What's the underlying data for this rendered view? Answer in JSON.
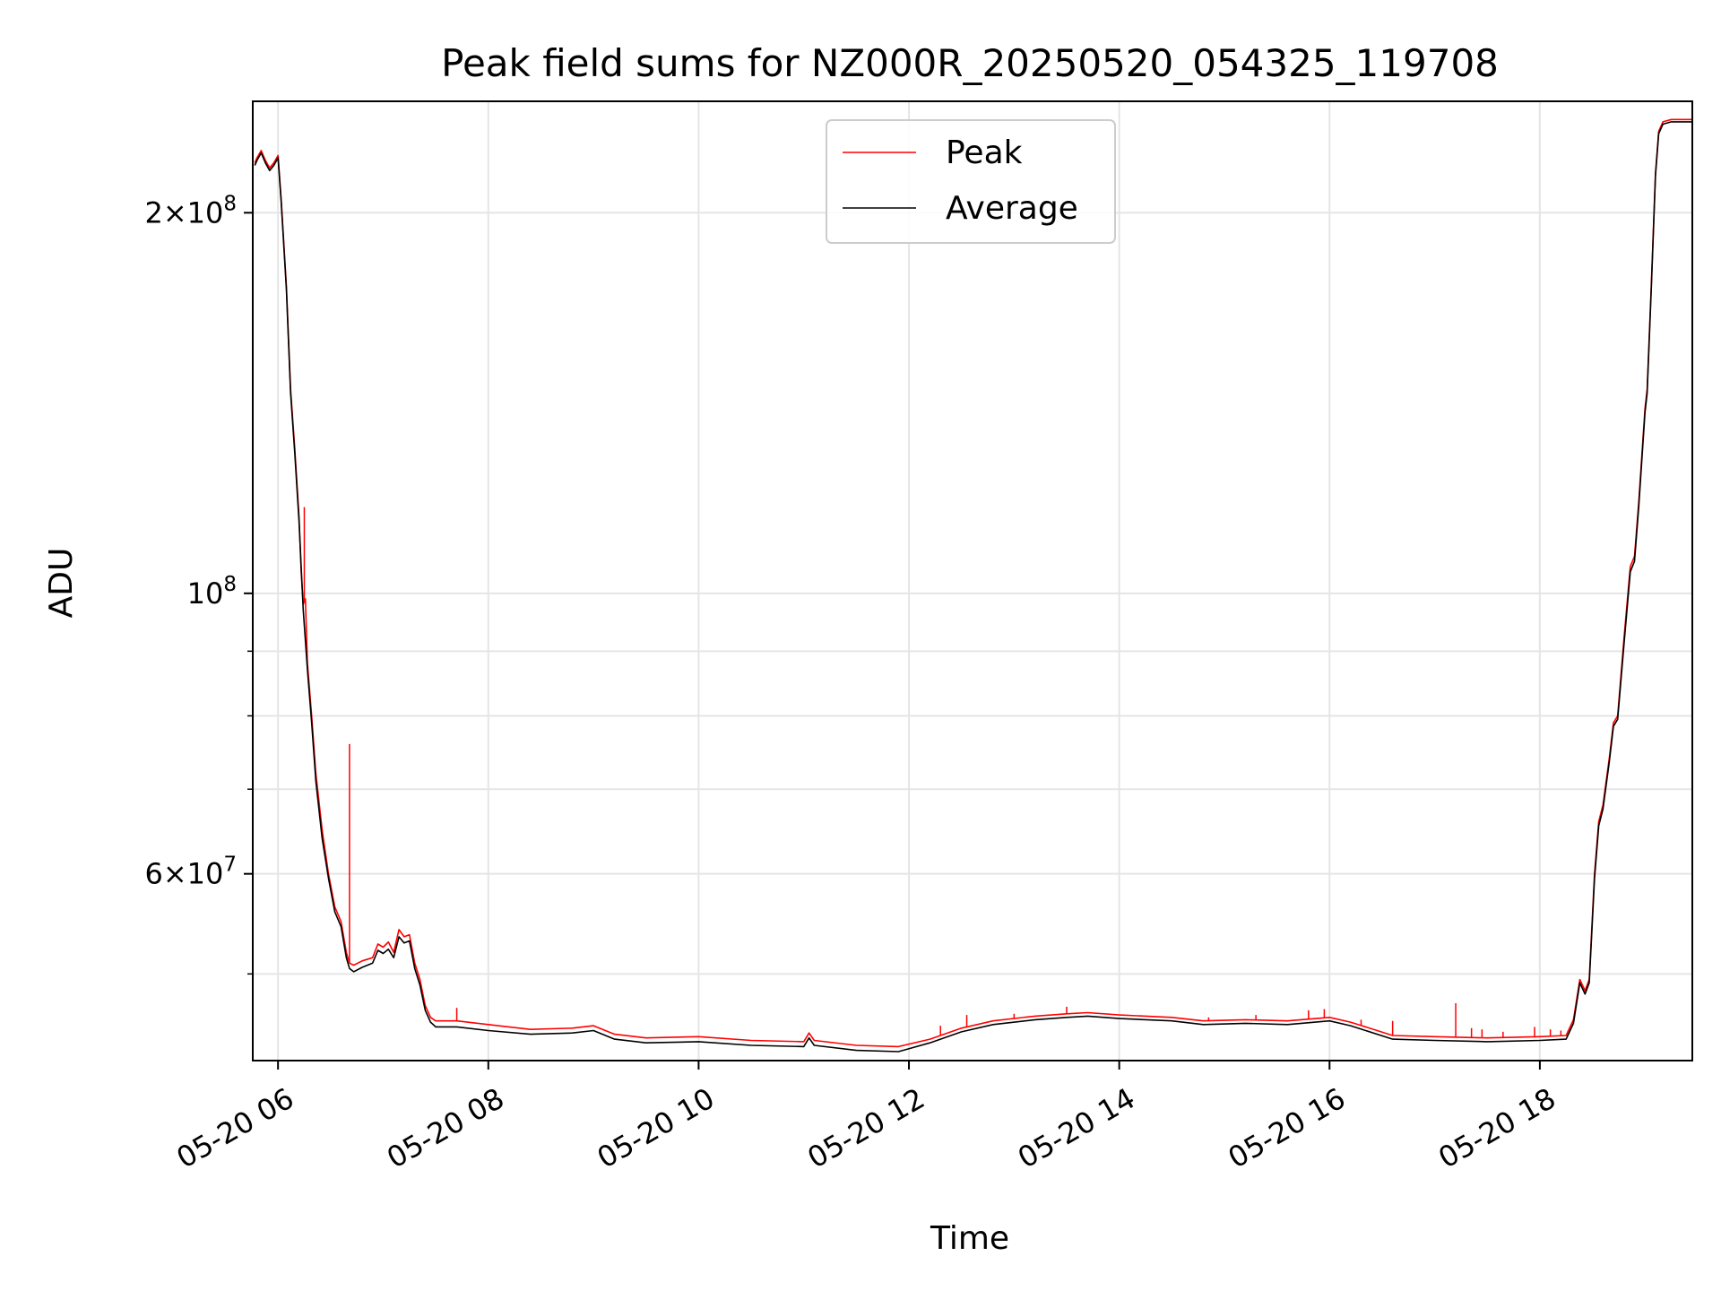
{
  "chart_data": {
    "type": "line",
    "title": "Peak field sums for NZ000R_20250520_054325_119708",
    "xlabel": "Time",
    "ylabel": "ADU",
    "x_unit": "hours",
    "xlim": [
      5.76,
      19.45
    ],
    "ylim": [
      42700000,
      245000000
    ],
    "y_scale": "log",
    "grid": true,
    "legend_position": "top-center",
    "x_ticks": [
      {
        "value": 6,
        "label": "05-20 06"
      },
      {
        "value": 8,
        "label": "05-20 08"
      },
      {
        "value": 10,
        "label": "05-20 10"
      },
      {
        "value": 12,
        "label": "05-20 12"
      },
      {
        "value": 14,
        "label": "05-20 14"
      },
      {
        "value": 16,
        "label": "05-20 16"
      },
      {
        "value": 18,
        "label": "05-20 18"
      }
    ],
    "y_major_ticks": [
      {
        "value": 100000000,
        "base": "10",
        "exp": "8"
      },
      {
        "value": 200000000,
        "mant": "2",
        "base": "10",
        "exp": "8"
      },
      {
        "value": 60000000,
        "mant": "6",
        "base": "10",
        "exp": "7"
      }
    ],
    "y_minor_ticks": [
      50000000,
      70000000,
      80000000,
      90000000
    ],
    "series": [
      {
        "name": "Peak",
        "color": "#ff0000",
        "points": [
          [
            5.78,
            219000000.0
          ],
          [
            5.8,
            221000000.0
          ],
          [
            5.84,
            224000000.0
          ],
          [
            5.88,
            220000000.0
          ],
          [
            5.92,
            217000000.0
          ],
          [
            5.96,
            219000000.0
          ],
          [
            6.0,
            222000000.0
          ],
          [
            6.03,
            205000000.0
          ],
          [
            6.08,
            175000000.0
          ],
          [
            6.12,
            145000000.0
          ],
          [
            6.16,
            130000000.0
          ],
          [
            6.2,
            115000000.0
          ],
          [
            6.22,
            104000000.0
          ],
          [
            6.24,
            98000000.0
          ],
          [
            6.26,
            99000000.0
          ],
          [
            6.28,
            88000000.0
          ],
          [
            6.32,
            80000000.0
          ],
          [
            6.36,
            72000000.0
          ],
          [
            6.42,
            65000000.0
          ],
          [
            6.48,
            60000000.0
          ],
          [
            6.54,
            56500000.0
          ],
          [
            6.6,
            55000000.0
          ],
          [
            6.65,
            52000000.0
          ],
          [
            6.68,
            51000000.0
          ],
          [
            6.72,
            50800000.0
          ],
          [
            6.8,
            51200000.0
          ],
          [
            6.9,
            51500000.0
          ],
          [
            6.95,
            52800000.0
          ],
          [
            7.0,
            52500000.0
          ],
          [
            7.05,
            53000000.0
          ],
          [
            7.1,
            52000000.0
          ],
          [
            7.15,
            54200000.0
          ],
          [
            7.2,
            53500000.0
          ],
          [
            7.25,
            53700000.0
          ],
          [
            7.3,
            51000000.0
          ],
          [
            7.35,
            49500000.0
          ],
          [
            7.4,
            47200000.0
          ],
          [
            7.45,
            46200000.0
          ],
          [
            7.5,
            45900000.0
          ],
          [
            7.7,
            45900000.0
          ],
          [
            8.0,
            45600000.0
          ],
          [
            8.4,
            45200000.0
          ],
          [
            8.8,
            45300000.0
          ],
          [
            9.0,
            45500000.0
          ],
          [
            9.2,
            44800000.0
          ],
          [
            9.5,
            44500000.0
          ],
          [
            10.0,
            44600000.0
          ],
          [
            10.5,
            44300000.0
          ],
          [
            11.0,
            44200000.0
          ],
          [
            11.05,
            44900000.0
          ],
          [
            11.1,
            44300000.0
          ],
          [
            11.5,
            43900000.0
          ],
          [
            11.9,
            43800000.0
          ],
          [
            12.2,
            44400000.0
          ],
          [
            12.5,
            45300000.0
          ],
          [
            12.8,
            45900000.0
          ],
          [
            13.2,
            46300000.0
          ],
          [
            13.5,
            46500000.0
          ],
          [
            13.7,
            46600000.0
          ],
          [
            14.0,
            46400000.0
          ],
          [
            14.5,
            46200000.0
          ],
          [
            14.8,
            45900000.0
          ],
          [
            15.2,
            46000000.0
          ],
          [
            15.6,
            45900000.0
          ],
          [
            16.0,
            46200000.0
          ],
          [
            16.2,
            45800000.0
          ],
          [
            16.6,
            44700000.0
          ],
          [
            17.0,
            44600000.0
          ],
          [
            17.5,
            44500000.0
          ],
          [
            18.0,
            44600000.0
          ],
          [
            18.25,
            44700000.0
          ],
          [
            18.32,
            46000000.0
          ],
          [
            18.38,
            49500000.0
          ],
          [
            18.43,
            48500000.0
          ],
          [
            18.47,
            49500000.0
          ],
          [
            18.52,
            60000000.0
          ],
          [
            18.56,
            66000000.0
          ],
          [
            18.6,
            68000000.0
          ],
          [
            18.66,
            74000000.0
          ],
          [
            18.7,
            79000000.0
          ],
          [
            18.74,
            80000000.0
          ],
          [
            18.8,
            92000000.0
          ],
          [
            18.86,
            105000000.0
          ],
          [
            18.9,
            107000000.0
          ],
          [
            18.94,
            118000000.0
          ],
          [
            19.0,
            140000000.0
          ],
          [
            19.02,
            145000000.0
          ],
          [
            19.06,
            175000000.0
          ],
          [
            19.1,
            215000000.0
          ],
          [
            19.13,
            232000000.0
          ],
          [
            19.17,
            236000000.0
          ],
          [
            19.25,
            237000000.0
          ],
          [
            19.45,
            237000000.0
          ]
        ]
      },
      {
        "name": "Average",
        "color": "#000000",
        "points": [
          [
            5.78,
            218000000.0
          ],
          [
            5.8,
            220000000.0
          ],
          [
            5.84,
            223000000.0
          ],
          [
            5.88,
            219000000.0
          ],
          [
            5.92,
            216000000.0
          ],
          [
            5.96,
            218000000.0
          ],
          [
            6.0,
            221000000.0
          ],
          [
            6.03,
            204000000.0
          ],
          [
            6.08,
            174000000.0
          ],
          [
            6.12,
            144000000.0
          ],
          [
            6.16,
            129000000.0
          ],
          [
            6.2,
            114000000.0
          ],
          [
            6.24,
            97000000.0
          ],
          [
            6.28,
            87000000.0
          ],
          [
            6.32,
            79000000.0
          ],
          [
            6.36,
            71000000.0
          ],
          [
            6.42,
            64000000.0
          ],
          [
            6.48,
            59500000.0
          ],
          [
            6.54,
            56000000.0
          ],
          [
            6.6,
            54500000.0
          ],
          [
            6.65,
            51500000.0
          ],
          [
            6.68,
            50500000.0
          ],
          [
            6.72,
            50200000.0
          ],
          [
            6.8,
            50600000.0
          ],
          [
            6.9,
            51000000.0
          ],
          [
            6.95,
            52200000.0
          ],
          [
            7.0,
            51900000.0
          ],
          [
            7.05,
            52300000.0
          ],
          [
            7.1,
            51500000.0
          ],
          [
            7.15,
            53500000.0
          ],
          [
            7.2,
            52900000.0
          ],
          [
            7.25,
            53100000.0
          ],
          [
            7.3,
            50500000.0
          ],
          [
            7.35,
            49000000.0
          ],
          [
            7.4,
            46800000.0
          ],
          [
            7.45,
            45800000.0
          ],
          [
            7.5,
            45400000.0
          ],
          [
            7.7,
            45400000.0
          ],
          [
            8.0,
            45100000.0
          ],
          [
            8.4,
            44800000.0
          ],
          [
            8.8,
            44900000.0
          ],
          [
            9.0,
            45100000.0
          ],
          [
            9.2,
            44400000.0
          ],
          [
            9.5,
            44100000.0
          ],
          [
            10.0,
            44200000.0
          ],
          [
            10.5,
            43900000.0
          ],
          [
            11.0,
            43800000.0
          ],
          [
            11.05,
            44500000.0
          ],
          [
            11.1,
            43900000.0
          ],
          [
            11.5,
            43500000.0
          ],
          [
            11.9,
            43400000.0
          ],
          [
            12.2,
            44100000.0
          ],
          [
            12.5,
            45000000.0
          ],
          [
            12.8,
            45600000.0
          ],
          [
            13.2,
            46000000.0
          ],
          [
            13.5,
            46200000.0
          ],
          [
            13.7,
            46300000.0
          ],
          [
            14.0,
            46100000.0
          ],
          [
            14.5,
            45900000.0
          ],
          [
            14.8,
            45600000.0
          ],
          [
            15.2,
            45700000.0
          ],
          [
            15.6,
            45600000.0
          ],
          [
            16.0,
            45900000.0
          ],
          [
            16.2,
            45500000.0
          ],
          [
            16.6,
            44400000.0
          ],
          [
            17.0,
            44300000.0
          ],
          [
            17.5,
            44200000.0
          ],
          [
            18.0,
            44300000.0
          ],
          [
            18.25,
            44400000.0
          ],
          [
            18.32,
            45700000.0
          ],
          [
            18.38,
            49200000.0
          ],
          [
            18.43,
            48200000.0
          ],
          [
            18.47,
            49200000.0
          ],
          [
            18.52,
            59500000.0
          ],
          [
            18.56,
            65500000.0
          ],
          [
            18.6,
            67500000.0
          ],
          [
            18.66,
            73500000.0
          ],
          [
            18.7,
            78500000.0
          ],
          [
            18.74,
            79500000.0
          ],
          [
            18.8,
            91000000.0
          ],
          [
            18.86,
            104000000.0
          ],
          [
            18.9,
            106000000.0
          ],
          [
            18.94,
            117000000.0
          ],
          [
            19.0,
            139000000.0
          ],
          [
            19.02,
            144000000.0
          ],
          [
            19.06,
            174000000.0
          ],
          [
            19.1,
            214000000.0
          ],
          [
            19.13,
            231000000.0
          ],
          [
            19.17,
            235000000.0
          ],
          [
            19.25,
            236000000.0
          ],
          [
            19.45,
            236000000.0
          ]
        ]
      }
    ],
    "spikes": [
      {
        "x": 6.25,
        "y": 117000000.0
      },
      {
        "x": 6.68,
        "y": 76000000.0
      },
      {
        "x": 7.7,
        "y": 47000000.0
      },
      {
        "x": 12.3,
        "y": 45500000.0
      },
      {
        "x": 12.55,
        "y": 46400000.0
      },
      {
        "x": 13.0,
        "y": 46500000.0
      },
      {
        "x": 13.5,
        "y": 47100000.0
      },
      {
        "x": 14.85,
        "y": 46200000.0
      },
      {
        "x": 15.3,
        "y": 46400000.0
      },
      {
        "x": 15.8,
        "y": 46800000.0
      },
      {
        "x": 15.95,
        "y": 46900000.0
      },
      {
        "x": 16.3,
        "y": 46000000.0
      },
      {
        "x": 16.6,
        "y": 45900000.0
      },
      {
        "x": 17.2,
        "y": 47400000.0
      },
      {
        "x": 17.35,
        "y": 45300000.0
      },
      {
        "x": 17.45,
        "y": 45200000.0
      },
      {
        "x": 17.65,
        "y": 45000000.0
      },
      {
        "x": 17.95,
        "y": 45400000.0
      },
      {
        "x": 18.1,
        "y": 45200000.0
      },
      {
        "x": 18.2,
        "y": 45100000.0
      }
    ]
  }
}
